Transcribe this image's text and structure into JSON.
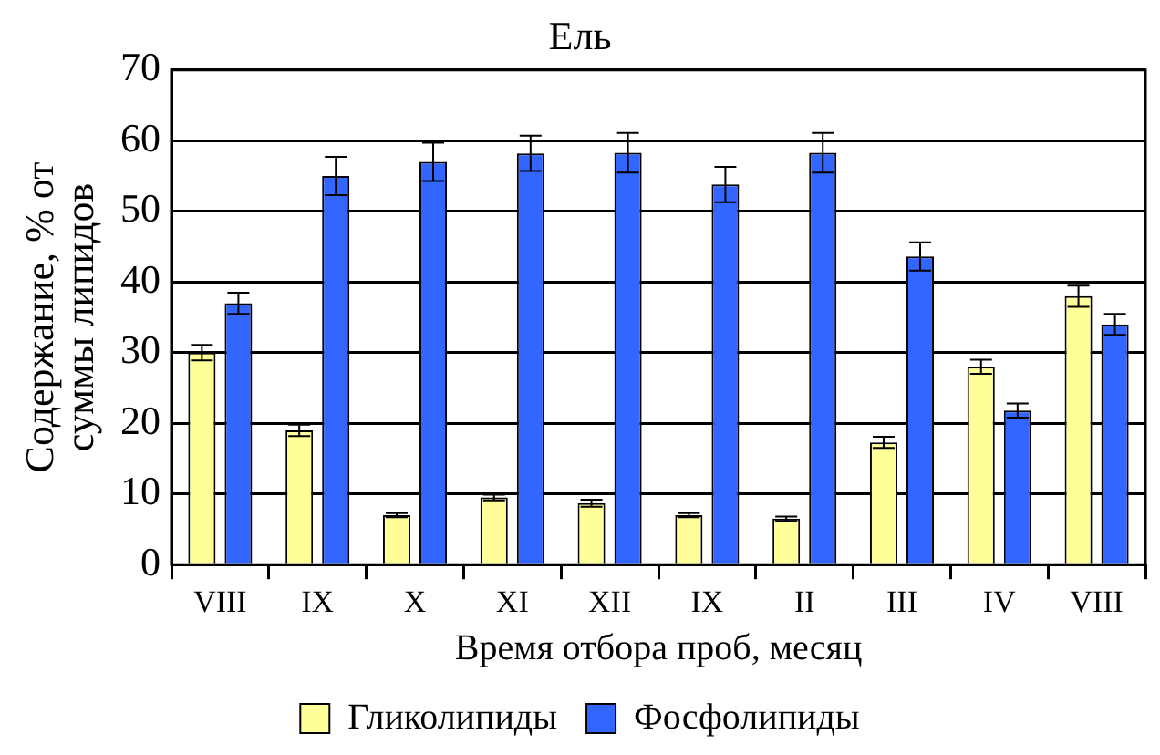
{
  "chart_data": {
    "type": "bar",
    "title": "Ель",
    "xlabel": "Время отбора проб, месяц",
    "ylabel": "Содержание, % от\nсуммы липидов",
    "categories": [
      "VIII",
      "IX",
      "X",
      "XI",
      "XII",
      "IX",
      "II",
      "III",
      "IV",
      "VIII"
    ],
    "series": [
      {
        "name": "Гликолипиды",
        "color": "#ffff99",
        "values": [
          30,
          19,
          7,
          9.5,
          8.7,
          7,
          6.5,
          17.3,
          28,
          38
        ],
        "errors": [
          1.1,
          0.8,
          0.3,
          0.4,
          0.5,
          0.3,
          0.3,
          0.8,
          1,
          1.5
        ]
      },
      {
        "name": "Фосфолипиды",
        "color": "#3366ff",
        "values": [
          37,
          55,
          57,
          58.2,
          58.3,
          53.8,
          58.3,
          43.6,
          21.8,
          34
        ],
        "errors": [
          1.5,
          2.7,
          2.7,
          2.5,
          2.8,
          2.5,
          2.8,
          2,
          1,
          1.5
        ]
      }
    ],
    "ylim": [
      0,
      70
    ],
    "yticks": [
      0,
      10,
      20,
      30,
      40,
      50,
      60,
      70
    ],
    "grid": "y",
    "legend": "bottom"
  }
}
